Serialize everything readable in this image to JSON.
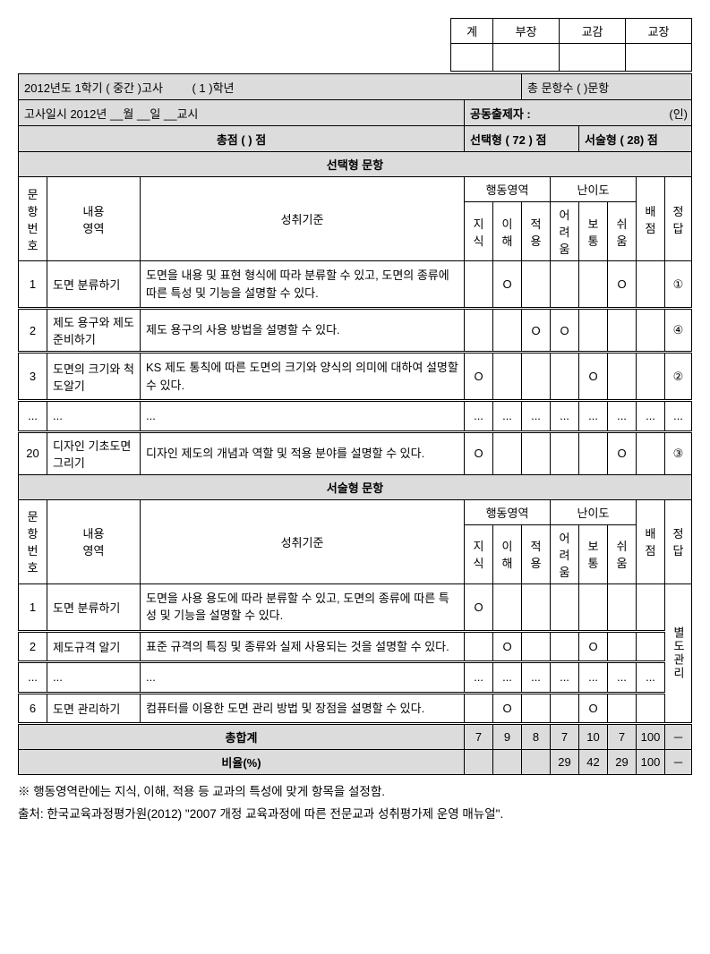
{
  "approval": {
    "cols": [
      "계",
      "부장",
      "교감",
      "교장"
    ]
  },
  "header": {
    "line1_left": "2012년도   1학기 ( 중간 )고사",
    "line1_mid": "( 1 )학년",
    "line1_right": "총 문항수 (      )문항",
    "line2_left": "고사일시 2012년    __월   __일   __교시",
    "line2_right": "공동출제자 :",
    "line2_right_suffix": "(인)",
    "line3_left_label": "총점 (        ) 점",
    "line3_sel": "선택형 ( 72 ) 점",
    "line3_desc": "서술형 ( 28) 점"
  },
  "section_sel_title": "선택형 문항",
  "section_desc_title": "서술형 문항",
  "head": {
    "num": "문항\n번호",
    "area": "내용\n영역",
    "crit": "성취기준",
    "beh": "행동영역",
    "diff": "난이도",
    "score": "배\n점",
    "ans": "정\n답",
    "beh_sub": [
      "지\n식",
      "이\n해",
      "적\n용"
    ],
    "diff_sub": [
      "어려\n움",
      "보\n통",
      "쉬\n움"
    ]
  },
  "sel_rows": [
    {
      "n": "1",
      "area": "도면 분류하기",
      "crit": "도면을 내용 및 표현 형식에 따라 분류할 수 있고, 도면의 종류에 따른 특성 및 기능을 설명할 수 있다.",
      "b": [
        "",
        "O",
        ""
      ],
      "d": [
        "",
        "",
        "O"
      ],
      "score": "",
      "ans": "①"
    },
    {
      "n": "2",
      "area": "제도 용구와 제도 준비하기",
      "crit": "제도 용구의 사용 방법을 설명할 수 있다.",
      "b": [
        "",
        "",
        "O"
      ],
      "d": [
        "O",
        "",
        ""
      ],
      "score": "",
      "ans": "④"
    },
    {
      "n": "3",
      "area": "도면의 크기와 척도알기",
      "crit": "KS 제도 통칙에 따른 도면의 크기와 양식의 의미에 대하여 설명할 수 있다.",
      "b": [
        "O",
        "",
        ""
      ],
      "d": [
        "",
        "O",
        ""
      ],
      "score": "",
      "ans": "②"
    },
    {
      "n": "...",
      "area": "...",
      "crit": "...",
      "b": [
        "...",
        "...",
        "..."
      ],
      "d": [
        "...",
        "...",
        "..."
      ],
      "score": "...",
      "ans": "..."
    },
    {
      "n": "20",
      "area": "디자인 기초도면 그리기",
      "crit": "디자인 제도의 개념과 역할 및 적용 분야를 설명할 수 있다.",
      "b": [
        "O",
        "",
        ""
      ],
      "d": [
        "",
        "",
        "O"
      ],
      "score": "",
      "ans": "③"
    }
  ],
  "desc_rows": [
    {
      "n": "1",
      "area": "도면 분류하기",
      "crit": "도면을 사용 용도에 따라 분류할 수 있고, 도면의 종류에 따른 특성 및 기능을 설명할 수 있다.",
      "b": [
        "O",
        "",
        ""
      ],
      "d": [
        "",
        "",
        ""
      ],
      "score": "",
      "ans": ""
    },
    {
      "n": "2",
      "area": "제도규격 알기",
      "crit": "표준 규격의 특징 및 종류와 실제 사용되는 것을 설명할 수 있다.",
      "b": [
        "",
        "O",
        ""
      ],
      "d": [
        "",
        "O",
        ""
      ],
      "score": "",
      "ans": ""
    },
    {
      "n": "...",
      "area": "...",
      "crit": "...",
      "b": [
        "...",
        "...",
        "..."
      ],
      "d": [
        "...",
        "...",
        "..."
      ],
      "score": "...",
      "ans": ""
    },
    {
      "n": "6",
      "area": "도면 관리하기",
      "crit": "컴퓨터를 이용한 도면 관리 방법 및 장점을 설명할 수 있다.",
      "b": [
        "",
        "O",
        ""
      ],
      "d": [
        "",
        "O",
        ""
      ],
      "score": "",
      "ans": ""
    }
  ],
  "desc_ans_merged": "별도관리",
  "totals": {
    "label": "총합계",
    "b": [
      "7",
      "9",
      "8"
    ],
    "d": [
      "7",
      "10",
      "7"
    ],
    "score": "100",
    "ans": "－"
  },
  "ratio": {
    "label": "비율(%)",
    "b": [
      "",
      "",
      ""
    ],
    "d": [
      "29",
      "42",
      "29"
    ],
    "score": "100",
    "ans": "－"
  },
  "footnotes": {
    "note": "※ 행동영역란에는 지식, 이해, 적용 등 교과의 특성에 맞게 항목을 설정함.",
    "source_label": "출처:",
    "source_text": "한국교육과정평가원(2012) \"2007 개정 교육과정에 따른 전문교과 성취평가제 운영 매뉴얼\"."
  }
}
